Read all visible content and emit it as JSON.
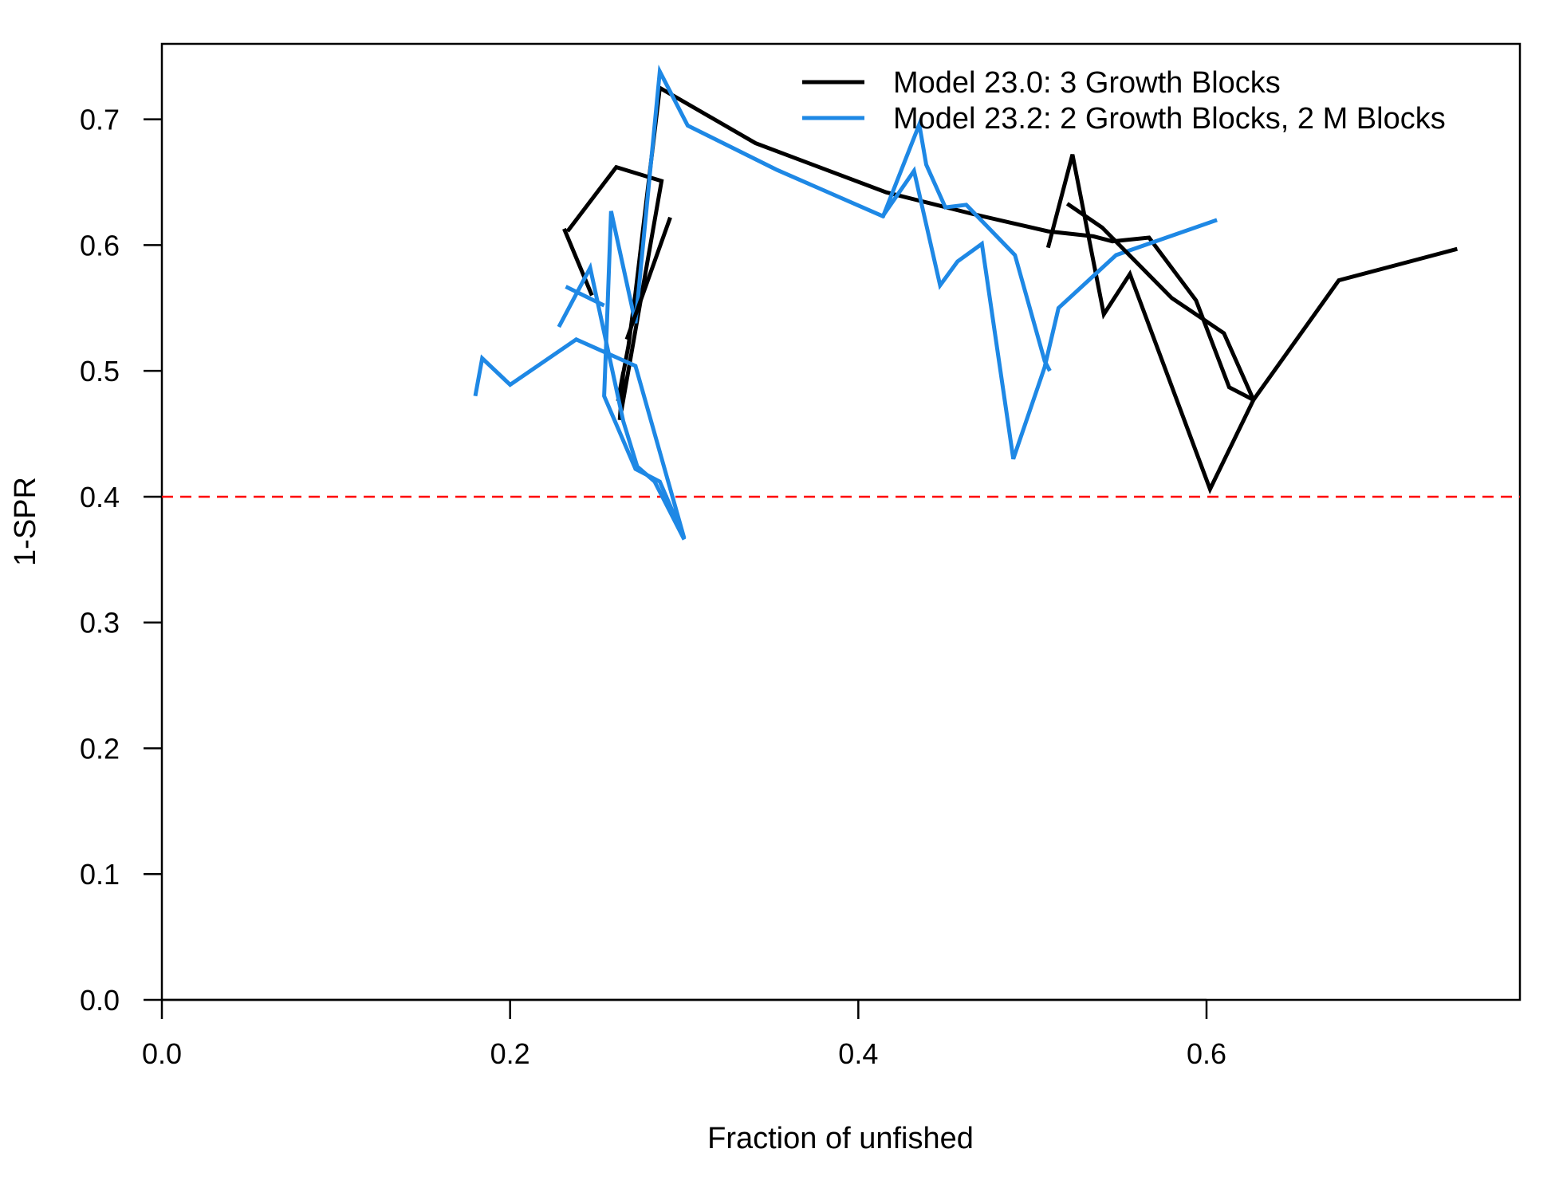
{
  "chart_data": {
    "type": "line",
    "title": "",
    "xlabel": "Fraction of unfished",
    "ylabel": "1-SPR",
    "xlim": [
      0,
      0.78
    ],
    "ylim": [
      0,
      0.76
    ],
    "x_ticks": [
      "0.0",
      "0.2",
      "0.4",
      "0.6"
    ],
    "x_tick_values": [
      0,
      0.2,
      0.4,
      0.6
    ],
    "y_ticks": [
      "0.0",
      "0.1",
      "0.2",
      "0.3",
      "0.4",
      "0.5",
      "0.6",
      "0.7"
    ],
    "y_tick_values": [
      0,
      0.1,
      0.2,
      0.3,
      0.4,
      0.5,
      0.6,
      0.7
    ],
    "grid": false,
    "legend_position": "top-right",
    "reference_line": {
      "y": 0.4,
      "color": "#ff0000",
      "style": "dashed"
    },
    "series": [
      {
        "name": "Model 23.0: 3 Growth Blocks",
        "color": "#000000",
        "x": [
          0.233,
          0.261,
          0.287,
          0.263,
          0.265,
          0.262,
          0.268,
          0.272,
          0.286,
          0.341,
          0.416,
          0.465,
          0.509,
          0.535,
          0.546,
          0.567,
          0.594,
          0.613,
          0.627,
          0.602,
          0.556,
          0.541,
          0.523,
          0.509
        ],
        "y": [
          0.611,
          0.662,
          0.651,
          0.461,
          0.499,
          0.476,
          0.52,
          0.562,
          0.725,
          0.681,
          0.642,
          0.625,
          0.611,
          0.607,
          0.603,
          0.606,
          0.556,
          0.487,
          0.477,
          0.406,
          0.577,
          0.545,
          0.672,
          0.598
        ]
      },
      {
        "name": "Model 23.2: 2 Growth Blocks, 2 M Blocks",
        "color": "#1e88e5",
        "x": [
          0.18,
          0.184,
          0.2,
          0.238,
          0.272,
          0.3,
          0.286,
          0.272,
          0.254,
          0.256,
          0.258,
          0.272,
          0.286,
          0.302,
          0.353,
          0.414,
          0.432,
          0.447,
          0.457,
          0.471,
          0.489,
          0.507,
          0.515,
          0.548,
          0.606
        ],
        "y": [
          0.48,
          0.51,
          0.489,
          0.525,
          0.504,
          0.367,
          0.412,
          0.422,
          0.48,
          0.551,
          0.627,
          0.538,
          0.738,
          0.695,
          0.66,
          0.623,
          0.659,
          0.568,
          0.587,
          0.601,
          0.43,
          0.503,
          0.55,
          0.592,
          0.62
        ]
      },
      {
        "name": "",
        "color": "#000000",
        "x": [
          0.231,
          0.247
        ],
        "y": [
          0.613,
          0.56
        ]
      },
      {
        "name": "",
        "color": "#000000",
        "x": [
          0.267,
          0.292
        ],
        "y": [
          0.525,
          0.622
        ]
      },
      {
        "name": "",
        "color": "#000000",
        "x": [
          0.52,
          0.54,
          0.58,
          0.61,
          0.627,
          0.676,
          0.744
        ],
        "y": [
          0.633,
          0.614,
          0.558,
          0.53,
          0.477,
          0.572,
          0.597
        ]
      },
      {
        "name": "",
        "color": "#1e88e5",
        "x": [
          0.414,
          0.435,
          0.439,
          0.45,
          0.462,
          0.49,
          0.507,
          0.51
        ],
        "y": [
          0.622,
          0.696,
          0.664,
          0.63,
          0.632,
          0.592,
          0.508,
          0.5
        ]
      },
      {
        "name": "",
        "color": "#1e88e5",
        "x": [
          0.228,
          0.246,
          0.265,
          0.273,
          0.283,
          0.3
        ],
        "y": [
          0.535,
          0.582,
          0.46,
          0.424,
          0.412,
          0.366
        ]
      },
      {
        "name": "",
        "color": "#1e88e5",
        "x": [
          0.232,
          0.254
        ],
        "y": [
          0.567,
          0.552
        ]
      }
    ]
  }
}
